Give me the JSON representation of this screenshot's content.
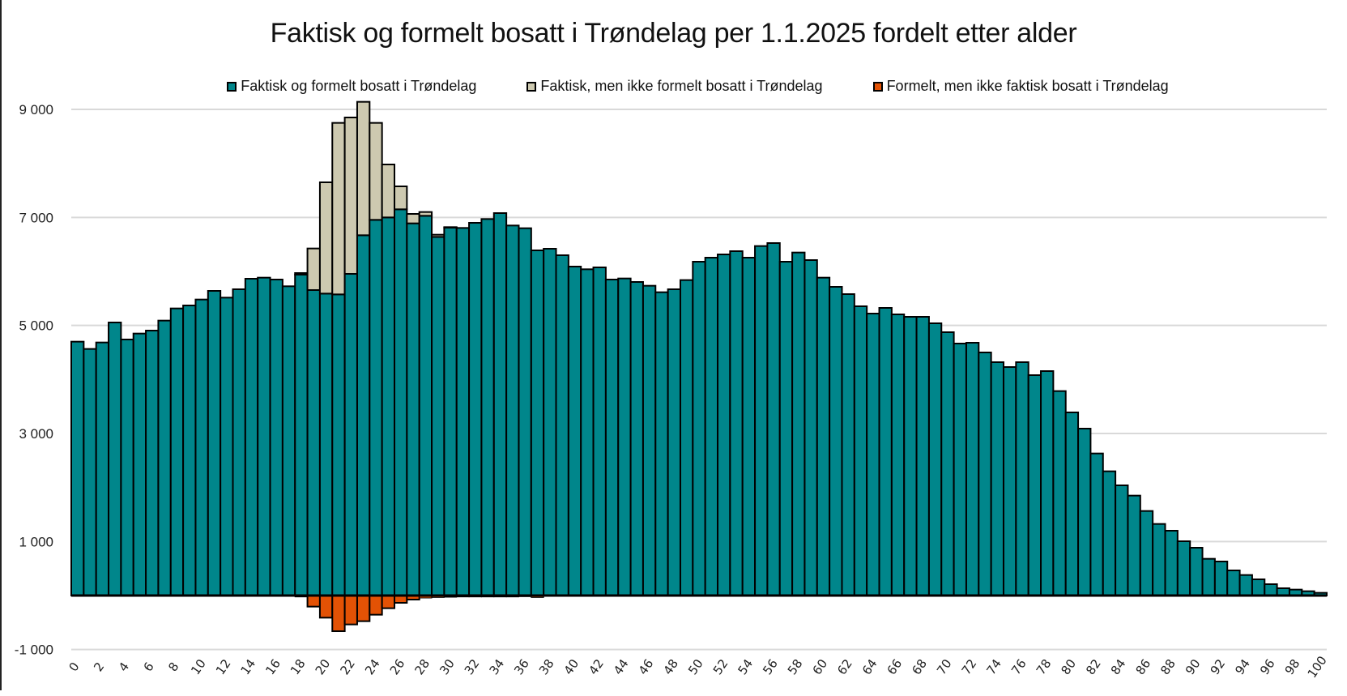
{
  "chart_data": {
    "type": "bar",
    "stacked": true,
    "title": "Faktisk og formelt bosatt i Trøndelag per 1.1.2025 fordelt etter alder",
    "xlabel": "",
    "ylabel": "",
    "ylim": [
      -1000,
      9000
    ],
    "yticks": [
      -1000,
      1000,
      3000,
      5000,
      7000,
      9000
    ],
    "ytick_labels": [
      "-1 000",
      "1 000",
      "3 000",
      "5 000",
      "7 000",
      "9 000"
    ],
    "grid": true,
    "legend_position": "top",
    "x_tick_step": 2,
    "categories": [
      0,
      1,
      2,
      3,
      4,
      5,
      6,
      7,
      8,
      9,
      10,
      11,
      12,
      13,
      14,
      15,
      16,
      17,
      18,
      19,
      20,
      21,
      22,
      23,
      24,
      25,
      26,
      27,
      28,
      29,
      30,
      31,
      32,
      33,
      34,
      35,
      36,
      37,
      38,
      39,
      40,
      41,
      42,
      43,
      44,
      45,
      46,
      47,
      48,
      49,
      50,
      51,
      52,
      53,
      54,
      55,
      56,
      57,
      58,
      59,
      60,
      61,
      62,
      63,
      64,
      65,
      66,
      67,
      68,
      69,
      70,
      71,
      72,
      73,
      74,
      75,
      76,
      77,
      78,
      79,
      80,
      81,
      82,
      83,
      84,
      85,
      86,
      87,
      88,
      89,
      90,
      91,
      92,
      93,
      94,
      95,
      96,
      97,
      98,
      99,
      100
    ],
    "series": [
      {
        "name": "Faktisk og formelt bosatt i Trøndelag",
        "color": "#00868B",
        "values": [
          4700,
          4565,
          4685,
          5055,
          4740,
          4850,
          4905,
          5090,
          5315,
          5370,
          5480,
          5640,
          5515,
          5670,
          5865,
          5885,
          5850,
          5725,
          5940,
          5655,
          5590,
          5575,
          5955,
          6670,
          6955,
          7000,
          7150,
          6890,
          7030,
          6640,
          6810,
          6805,
          6900,
          6970,
          7080,
          6850,
          6800,
          6390,
          6420,
          6300,
          6090,
          6040,
          6075,
          5850,
          5870,
          5805,
          5735,
          5615,
          5670,
          5840,
          6180,
          6255,
          6315,
          6375,
          6255,
          6470,
          6525,
          6180,
          6350,
          6210,
          5885,
          5715,
          5580,
          5355,
          5220,
          5325,
          5205,
          5160,
          5160,
          5040,
          4875,
          4665,
          4680,
          4500,
          4320,
          4230,
          4320,
          4080,
          4155,
          3785,
          3390,
          3090,
          2630,
          2300,
          2040,
          1850,
          1565,
          1325,
          1200,
          1005,
          885,
          680,
          630,
          465,
          380,
          300,
          210,
          135,
          110,
          80,
          50
        ]
      },
      {
        "name": "Faktisk, men ikke formelt bosatt i Trøndelag",
        "color": "#CDC9B0",
        "values": [
          0,
          0,
          0,
          0,
          0,
          0,
          0,
          0,
          0,
          0,
          0,
          0,
          0,
          0,
          0,
          0,
          0,
          0,
          30,
          770,
          2060,
          3175,
          2895,
          2470,
          1795,
          980,
          425,
          175,
          70,
          40,
          10,
          0,
          0,
          0,
          0,
          0,
          0,
          0,
          0,
          0,
          0,
          0,
          0,
          0,
          0,
          0,
          0,
          0,
          0,
          0,
          0,
          0,
          0,
          0,
          0,
          0,
          0,
          0,
          0,
          0,
          0,
          0,
          0,
          0,
          0,
          0,
          0,
          0,
          0,
          0,
          0,
          0,
          0,
          0,
          0,
          0,
          0,
          0,
          0,
          0,
          0,
          0,
          0,
          0,
          0,
          0,
          0,
          0,
          0,
          0,
          0,
          0,
          0,
          0,
          0,
          0,
          0,
          0,
          0,
          0,
          0
        ]
      },
      {
        "name": "Formelt, men ikke faktisk bosatt i Trøndelag",
        "color": "#E35205",
        "values": [
          -5,
          -5,
          -5,
          -5,
          -5,
          -5,
          -5,
          -5,
          -5,
          -5,
          -5,
          -5,
          -5,
          -5,
          -5,
          -5,
          -10,
          -15,
          -25,
          -205,
          -410,
          -660,
          -535,
          -475,
          -355,
          -235,
          -135,
          -75,
          -45,
          -35,
          -30,
          -25,
          -25,
          -25,
          -25,
          -25,
          -20,
          -35,
          -15,
          -15,
          -15,
          -15,
          -10,
          -10,
          -10,
          -10,
          -10,
          -10,
          -10,
          -10,
          -10,
          -10,
          -10,
          -10,
          -10,
          -10,
          -10,
          -10,
          -10,
          -10,
          -10,
          -10,
          -10,
          -10,
          -10,
          -10,
          -10,
          -10,
          -10,
          -10,
          -10,
          -10,
          -10,
          -10,
          -10,
          -10,
          -10,
          -10,
          -10,
          -10,
          -10,
          -10,
          -10,
          -10,
          -10,
          -10,
          -5,
          -5,
          -5,
          -5,
          -5,
          -5,
          -5,
          -5,
          -5,
          -5,
          -5,
          -5,
          -5,
          -5,
          -5
        ]
      }
    ]
  },
  "header": {
    "title": "Faktisk og formelt bosatt i Trøndelag per 1.1.2025 fordelt etter alder"
  },
  "legend": {
    "items": [
      {
        "label": "Faktisk og formelt bosatt i Trøndelag",
        "color": "#00868B"
      },
      {
        "label": "Faktisk, men ikke formelt bosatt i Trøndelag",
        "color": "#CDC9B0"
      },
      {
        "label": "Formelt, men ikke faktisk bosatt i Trøndelag",
        "color": "#E35205"
      }
    ]
  },
  "colors": {
    "gridline": "#D9D9D9",
    "bar_border": "#000000",
    "zero_axis": "#000000"
  }
}
